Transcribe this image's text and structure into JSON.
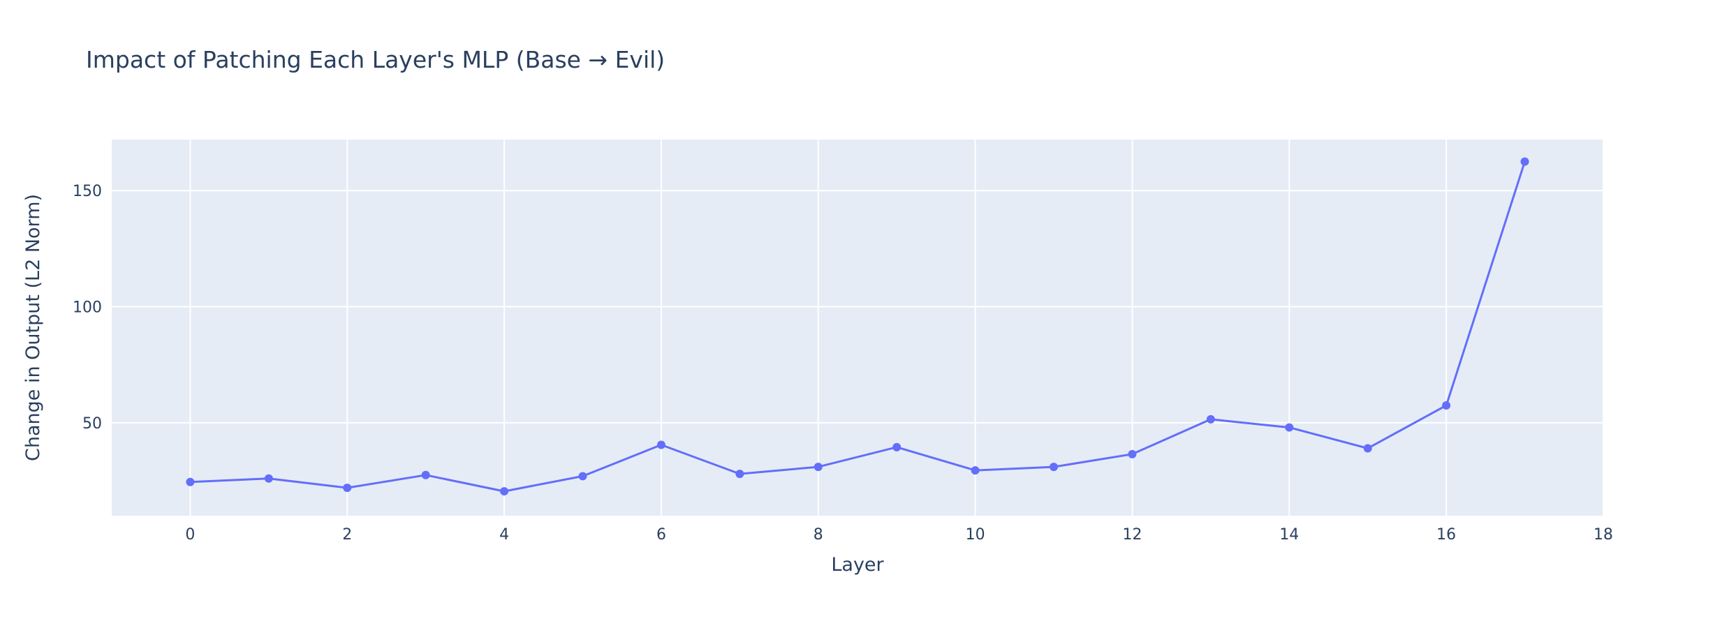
{
  "chart_data": {
    "type": "line",
    "title": "Impact of Patching Each Layer's MLP (Base → Evil)",
    "xlabel": "Layer",
    "ylabel": "Change in Output (L2 Norm)",
    "xlim": [
      -1,
      18
    ],
    "ylim": [
      10,
      172
    ],
    "x_ticks": [
      0,
      2,
      4,
      6,
      8,
      10,
      12,
      14,
      16,
      18
    ],
    "y_ticks": [
      50,
      100,
      150
    ],
    "grid": true,
    "legend": "none",
    "colors": {
      "line": "#636efa",
      "plot_bg": "#e5ecf6",
      "grid": "#ffffff",
      "text": "#2a3f5f"
    },
    "series": [
      {
        "x": [
          0,
          1,
          2,
          3,
          4,
          5,
          6,
          7,
          8,
          9,
          10,
          11,
          12,
          13,
          14,
          15,
          16,
          17
        ],
        "values": [
          24.5,
          26,
          22,
          27.5,
          20.5,
          27,
          40.5,
          28,
          31,
          39.5,
          29.5,
          31,
          36.5,
          51.5,
          48,
          39,
          57.5,
          162.5
        ]
      }
    ]
  }
}
